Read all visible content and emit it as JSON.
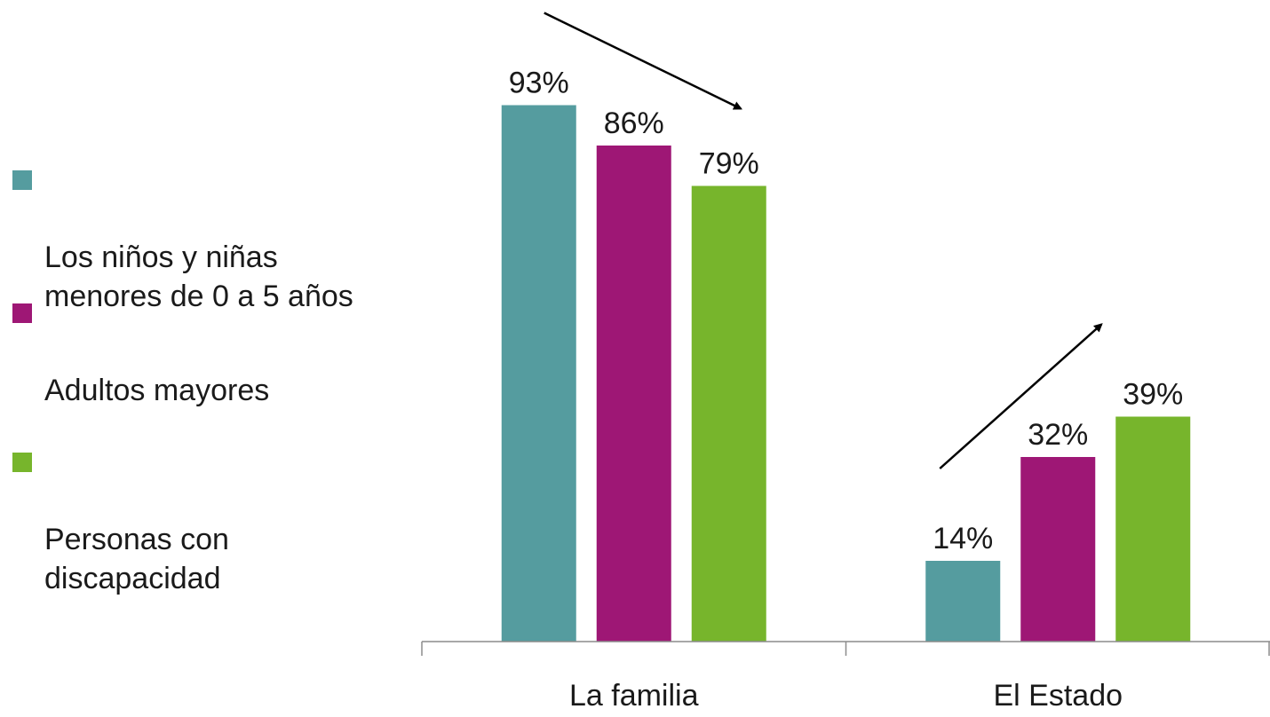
{
  "chart_data": {
    "type": "bar",
    "categories": [
      "La familia",
      "El Estado"
    ],
    "series": [
      {
        "name": "Los niños y niñas menores de 0 a 5 años",
        "values": [
          93,
          14
        ],
        "color": "#559c9f"
      },
      {
        "name": "Adultos mayores",
        "values": [
          86,
          32
        ],
        "color": "#9e1775"
      },
      {
        "name": "Personas con discapacidad",
        "values": [
          79,
          39
        ],
        "color": "#77b52c"
      }
    ],
    "value_suffix": "%",
    "title": "",
    "xlabel": "",
    "ylabel": "",
    "ylim": [
      0,
      100
    ],
    "grid": false,
    "legend_position": "left",
    "annotations": [
      {
        "type": "arrow",
        "category": "La familia",
        "direction": "down-right"
      },
      {
        "type": "arrow",
        "category": "El Estado",
        "direction": "up-right"
      }
    ]
  }
}
